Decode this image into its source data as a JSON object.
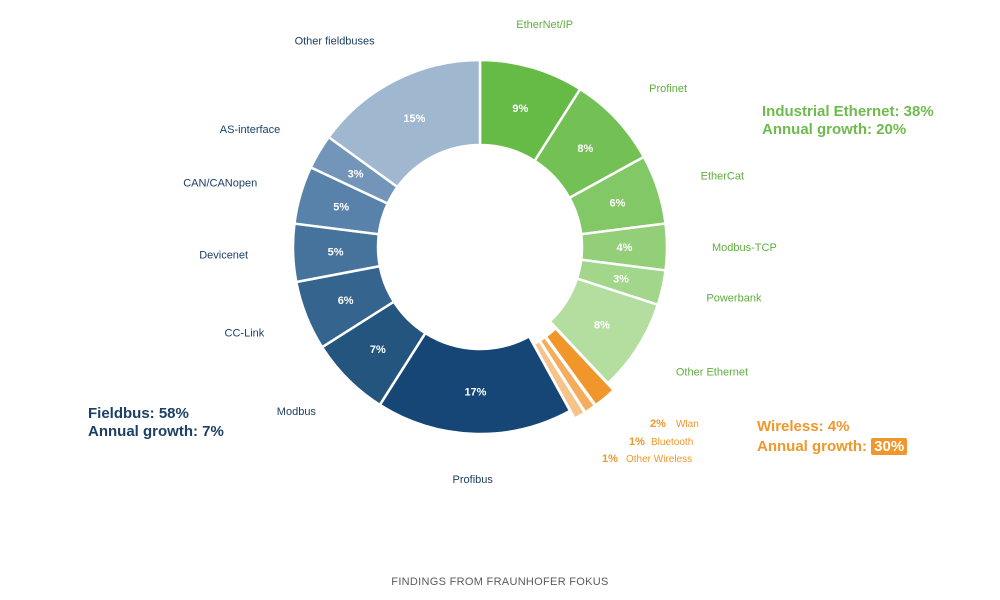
{
  "chart_data": {
    "type": "pie",
    "slices": [
      {
        "label": "EtherNet/IP",
        "value": 9,
        "display": "9%",
        "group": "ethernet",
        "color": "#66bb47"
      },
      {
        "label": "Profinet",
        "value": 8,
        "display": "8%",
        "group": "ethernet",
        "color": "#73c155"
      },
      {
        "label": "EtherCat",
        "value": 6,
        "display": "6%",
        "group": "ethernet",
        "color": "#82c866"
      },
      {
        "label": "Modbus-TCP",
        "value": 4,
        "display": "4%",
        "group": "ethernet",
        "color": "#92cf78"
      },
      {
        "label": "Powerbank",
        "value": 3,
        "display": "3%",
        "group": "ethernet",
        "color": "#a2d68b"
      },
      {
        "label": "Other Ethernet",
        "value": 8,
        "display": "8%",
        "group": "ethernet",
        "color": "#b4de9f"
      },
      {
        "label": "Wlan",
        "value": 2,
        "display": "2%",
        "group": "wireless",
        "color": "#f0962a"
      },
      {
        "label": "Bluetooth",
        "value": 1,
        "display": "1%",
        "group": "wireless",
        "color": "#f3ad5c"
      },
      {
        "label": "Other Wireless",
        "value": 1,
        "display": "1%",
        "group": "wireless",
        "color": "#f6c48a"
      },
      {
        "label": "Profibus",
        "value": 17,
        "display": "17%",
        "group": "fieldbus",
        "color": "#154676"
      },
      {
        "label": "Modbus",
        "value": 7,
        "display": "7%",
        "group": "fieldbus",
        "color": "#24557f"
      },
      {
        "label": "CC-Link",
        "value": 6,
        "display": "6%",
        "group": "fieldbus",
        "color": "#35648e"
      },
      {
        "label": "Devicenet",
        "value": 5,
        "display": "5%",
        "group": "fieldbus",
        "color": "#46739c"
      },
      {
        "label": "CAN/CANopen",
        "value": 5,
        "display": "5%",
        "group": "fieldbus",
        "color": "#5982aa"
      },
      {
        "label": "AS-interface",
        "value": 3,
        "display": "3%",
        "group": "fieldbus",
        "color": "#7395ba"
      },
      {
        "label": "Other fieldbuses",
        "value": 15,
        "display": "15%",
        "group": "fieldbus",
        "color": "#9fb7cf"
      }
    ]
  },
  "groups": {
    "ethernet": {
      "line1": "Industrial Ethernet: 38%",
      "line2": "Annual growth: 20%",
      "color": "#6dbb4c"
    },
    "fieldbus": {
      "line1": "Fieldbus: 58%",
      "line2": "Annual growth: 7%",
      "color": "#1b3f66"
    },
    "wireless": {
      "line1": "Wireless: 4%",
      "line2_prefix": "Annual growth:",
      "line2_value": "30%",
      "color": "#f0962a"
    }
  },
  "footer": "FINDINGS FROM FRAUNHOFER FOKUS"
}
